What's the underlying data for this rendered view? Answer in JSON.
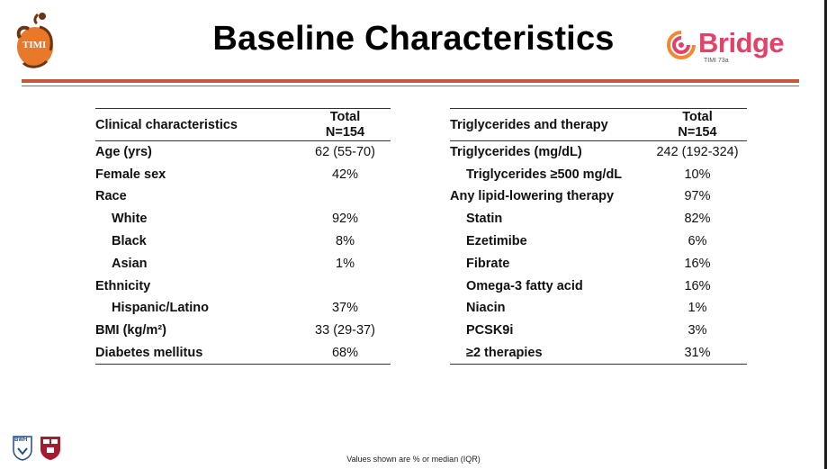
{
  "slide": {
    "title": "Baseline Characteristics",
    "footnote": "Values shown are % or median (IQR)"
  },
  "logos": {
    "timi_text": "TIMI",
    "bridge_name": "Bridge",
    "bridge_sub": "TIMI 73a",
    "bwh_text": "BWH"
  },
  "left_table": {
    "header_label": "Clinical characteristics",
    "header_total_1": "Total",
    "header_total_2": "N=154",
    "rows": [
      {
        "label": "Age (yrs)",
        "value": "62 (55-70)"
      },
      {
        "label": "Female sex",
        "value": "42%"
      },
      {
        "label": "Race",
        "value": ""
      },
      {
        "label": "White",
        "value": "92%"
      },
      {
        "label": "Black",
        "value": "8%"
      },
      {
        "label": "Asian",
        "value": "1%"
      },
      {
        "label": "Ethnicity",
        "value": ""
      },
      {
        "label": "Hispanic/Latino",
        "value": "37%"
      },
      {
        "label": "BMI (kg/m²)",
        "value": "33 (29-37)"
      },
      {
        "label": "Diabetes mellitus",
        "value": "68%"
      }
    ]
  },
  "right_table": {
    "header_label": "Triglycerides and therapy",
    "header_total_1": "Total",
    "header_total_2": "N=154",
    "rows": [
      {
        "label": "Triglycerides (mg/dL)",
        "value": "242 (192-324)"
      },
      {
        "label": "Triglycerides ≥500 mg/dL",
        "value": "10%"
      },
      {
        "label": "Any lipid-lowering therapy",
        "value": "97%"
      },
      {
        "label": "Statin",
        "value": "82%"
      },
      {
        "label": "Ezetimibe",
        "value": "6%"
      },
      {
        "label": "Fibrate",
        "value": "16%"
      },
      {
        "label": "Omega-3 fatty acid",
        "value": "16%"
      },
      {
        "label": "Niacin",
        "value": "1%"
      },
      {
        "label": "PCSK9i",
        "value": "3%"
      },
      {
        "label": "≥2 therapies",
        "value": "31%"
      }
    ]
  },
  "colors": {
    "accent_rule": "#c05a38",
    "bridge_pink": "#e0426a",
    "timi_orange": "#e8792b"
  }
}
